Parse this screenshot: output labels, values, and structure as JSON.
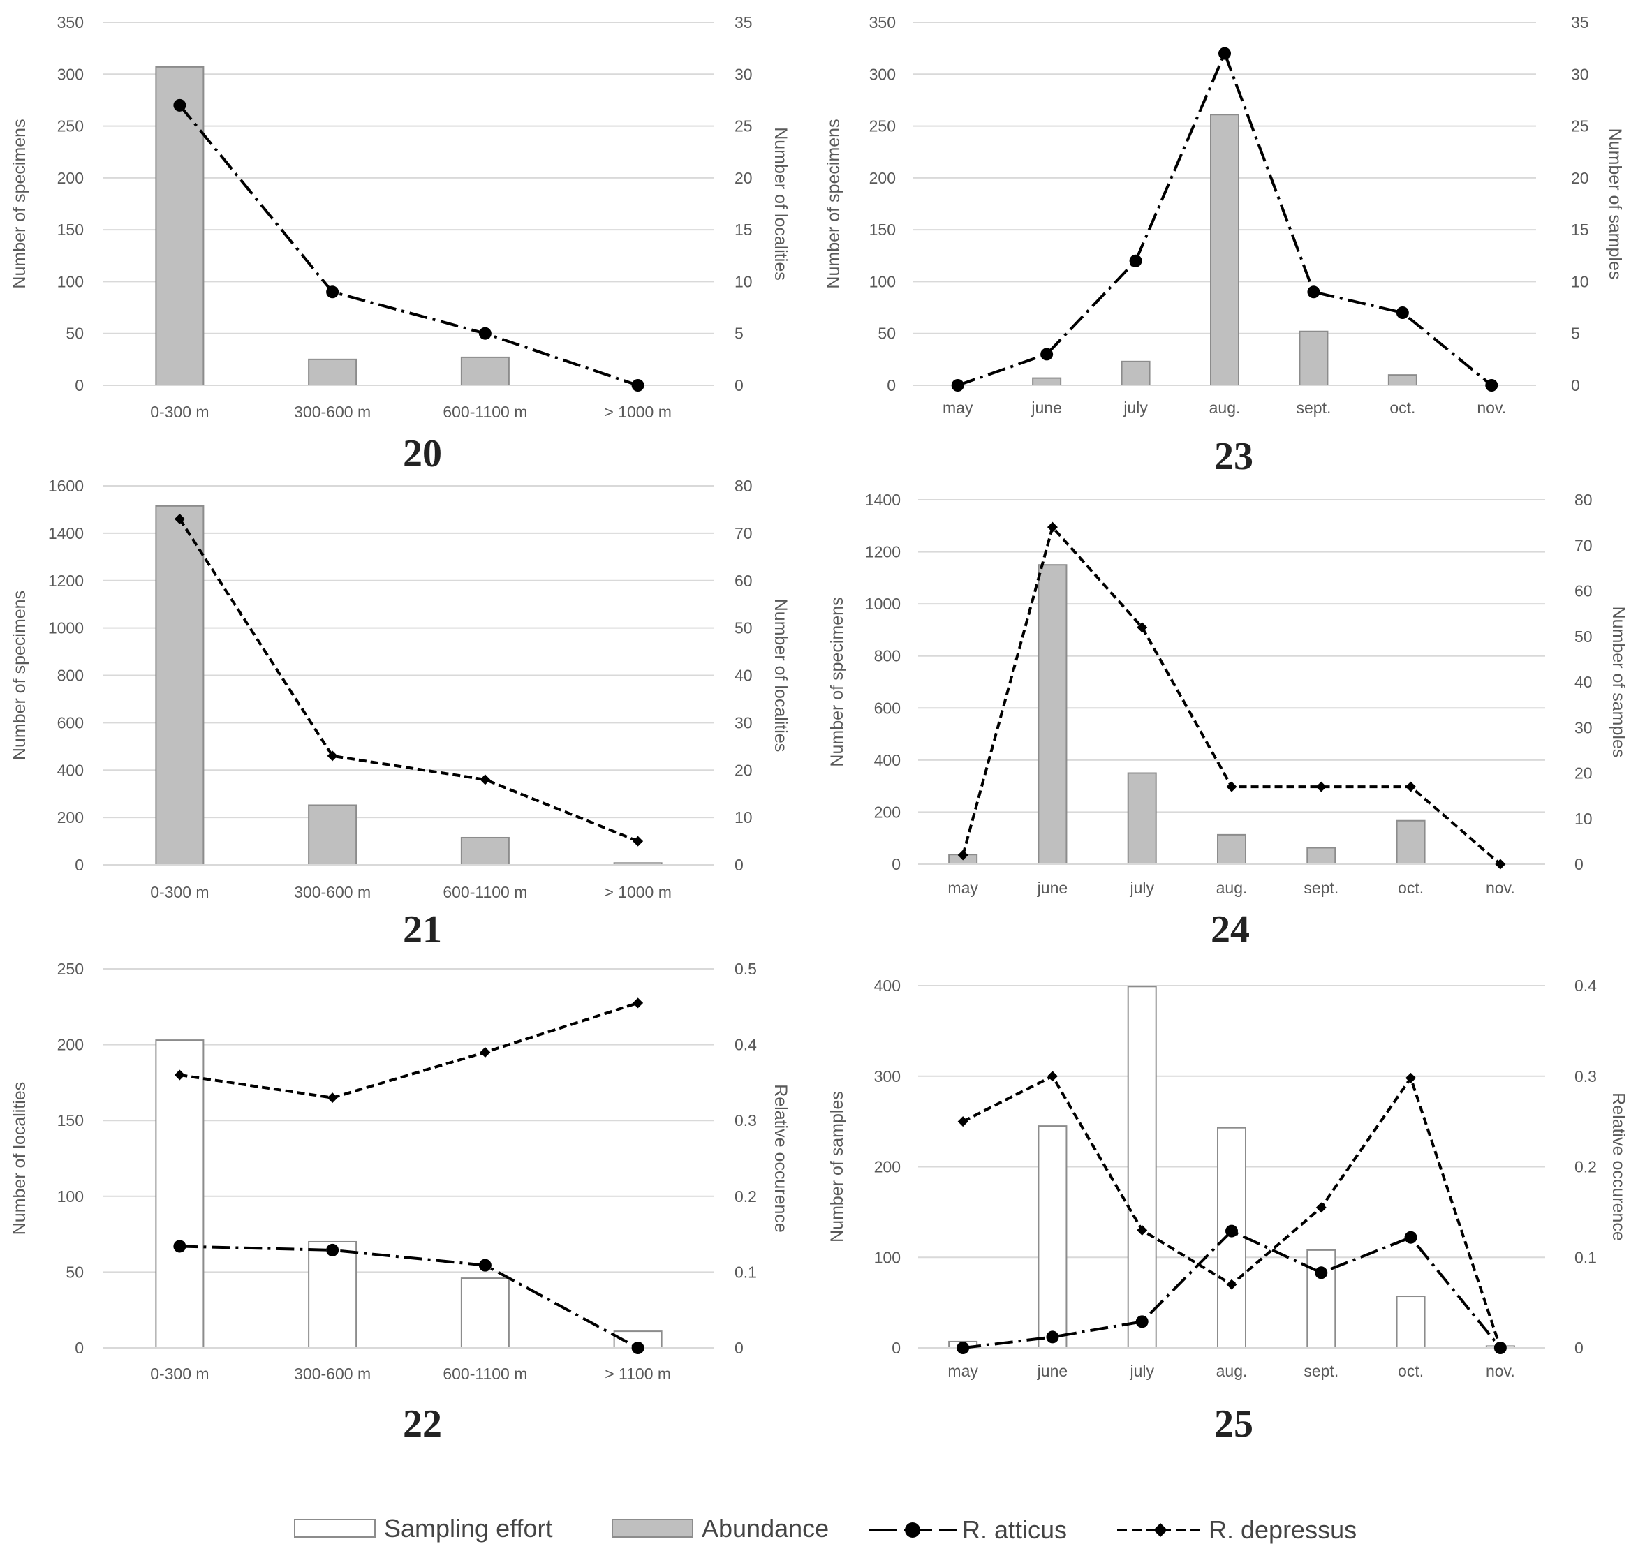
{
  "colors": {
    "abundance_fill": "#bfbfbf",
    "bar_stroke": "#8c8c8c",
    "effort_fill": "#ffffff",
    "grid": "#d9d9d9",
    "line": "#000000",
    "text": "#595959"
  },
  "legend": {
    "sampling_effort": "Sampling effort",
    "abundance": "Abundance",
    "r_atticus": "R. atticus",
    "r_depressus": "R. depressus"
  },
  "chart_data": [
    {
      "id": "20",
      "type": "bar",
      "panel_label": "20",
      "categories": [
        "0-300 m",
        "300-600 m",
        "600-1100 m",
        "> 1000 m"
      ],
      "ylabel": "Number of specimens",
      "y2label": "Number of localities",
      "ylim": [
        0,
        350
      ],
      "yticks": [
        0,
        50,
        100,
        150,
        200,
        250,
        300,
        350
      ],
      "y2lim": [
        0,
        35
      ],
      "y2ticks": [
        0,
        5,
        10,
        15,
        20,
        25,
        30,
        35
      ],
      "series": [
        {
          "name": "Abundance",
          "kind": "bar",
          "style": "abundance",
          "axis": "left",
          "values": [
            307,
            25,
            27,
            0
          ]
        },
        {
          "name": "R. atticus",
          "kind": "line",
          "style": "atticus",
          "axis": "right",
          "values": [
            27,
            9,
            5,
            0
          ]
        }
      ]
    },
    {
      "id": "21",
      "type": "bar",
      "panel_label": "21",
      "categories": [
        "0-300 m",
        "300-600 m",
        "600-1100 m",
        "> 1000 m"
      ],
      "ylabel": "Number of specimens",
      "y2label": "Number of localities",
      "ylim": [
        0,
        1600
      ],
      "yticks": [
        0,
        200,
        400,
        600,
        800,
        1000,
        1200,
        1400,
        1600
      ],
      "y2lim": [
        0,
        80
      ],
      "y2ticks": [
        0,
        10,
        20,
        30,
        40,
        50,
        60,
        70,
        80
      ],
      "series": [
        {
          "name": "Abundance",
          "kind": "bar",
          "style": "abundance",
          "axis": "left",
          "values": [
            1515,
            252,
            115,
            8
          ]
        },
        {
          "name": "R. depressus",
          "kind": "line",
          "style": "depressus",
          "axis": "right",
          "values": [
            73,
            23,
            18,
            5
          ]
        }
      ]
    },
    {
      "id": "22",
      "type": "bar",
      "panel_label": "22",
      "categories": [
        "0-300 m",
        "300-600 m",
        "600-1100 m",
        "> 1100 m"
      ],
      "ylabel": "Number of localities",
      "y2label": "Relative occurence",
      "ylim": [
        0,
        250
      ],
      "yticks": [
        0,
        50,
        100,
        150,
        200,
        250
      ],
      "y2lim": [
        0,
        0.5
      ],
      "y2ticks": [
        0,
        0.1,
        0.2,
        0.3,
        0.4,
        0.5
      ],
      "series": [
        {
          "name": "Sampling effort",
          "kind": "bar",
          "style": "effort",
          "axis": "left",
          "values": [
            203,
            70,
            46,
            11
          ]
        },
        {
          "name": "R. atticus",
          "kind": "line",
          "style": "atticus",
          "axis": "right",
          "values": [
            0.134,
            0.129,
            0.109,
            0
          ]
        },
        {
          "name": "R. depressus",
          "kind": "line",
          "style": "depressus",
          "axis": "right",
          "values": [
            0.36,
            0.33,
            0.39,
            0.455
          ]
        }
      ]
    },
    {
      "id": "23",
      "type": "bar",
      "panel_label": "23",
      "categories": [
        "may",
        "june",
        "july",
        "aug.",
        "sept.",
        "oct.",
        "nov."
      ],
      "ylabel": "Number of specimens",
      "y2label": "Number of samples",
      "ylim": [
        0,
        350
      ],
      "yticks": [
        0,
        50,
        100,
        150,
        200,
        250,
        300,
        350
      ],
      "y2lim": [
        0,
        35
      ],
      "y2ticks": [
        0,
        5,
        10,
        15,
        20,
        25,
        30,
        35
      ],
      "series": [
        {
          "name": "Abundance",
          "kind": "bar",
          "style": "abundance",
          "axis": "left",
          "values": [
            0,
            7,
            23,
            261,
            52,
            10,
            0
          ]
        },
        {
          "name": "R. atticus",
          "kind": "line",
          "style": "atticus",
          "axis": "right",
          "values": [
            0,
            3,
            12,
            32,
            9,
            7,
            0
          ]
        }
      ]
    },
    {
      "id": "24",
      "type": "bar",
      "panel_label": "24",
      "categories": [
        "may",
        "june",
        "july",
        "aug.",
        "sept.",
        "oct.",
        "nov."
      ],
      "ylabel": "Number of specimens",
      "y2label": "Number of samples",
      "ylim": [
        0,
        1400
      ],
      "yticks": [
        0,
        200,
        400,
        600,
        800,
        1000,
        1200,
        1400
      ],
      "y2lim": [
        0,
        80
      ],
      "y2ticks": [
        0,
        10,
        20,
        30,
        40,
        50,
        60,
        70,
        80
      ],
      "series": [
        {
          "name": "Abundance",
          "kind": "bar",
          "style": "abundance",
          "axis": "left",
          "values": [
            37,
            1150,
            350,
            113,
            63,
            167,
            0
          ]
        },
        {
          "name": "R. depressus",
          "kind": "line",
          "style": "depressus",
          "axis": "right",
          "values": [
            2,
            74,
            52,
            17,
            17,
            17,
            0
          ]
        }
      ]
    },
    {
      "id": "25",
      "type": "bar",
      "panel_label": "25",
      "categories": [
        "may",
        "june",
        "july",
        "aug.",
        "sept.",
        "oct.",
        "nov."
      ],
      "ylabel": "Number of samples",
      "y2label": "Relative occurence",
      "ylim": [
        0,
        400
      ],
      "yticks": [
        0,
        100,
        200,
        300,
        400
      ],
      "y2lim": [
        0,
        0.4
      ],
      "y2ticks": [
        0,
        0.1,
        0.2,
        0.3,
        0.4
      ],
      "series": [
        {
          "name": "Sampling effort",
          "kind": "bar",
          "style": "effort",
          "axis": "left",
          "values": [
            7,
            245,
            399,
            243,
            108,
            57,
            2
          ]
        },
        {
          "name": "R. atticus",
          "kind": "line",
          "style": "atticus",
          "axis": "right",
          "values": [
            0,
            0.012,
            0.029,
            0.129,
            0.083,
            0.122,
            0
          ]
        },
        {
          "name": "R. depressus",
          "kind": "line",
          "style": "depressus",
          "axis": "right",
          "values": [
            0.25,
            0.3,
            0.13,
            0.07,
            0.155,
            0.298,
            0
          ]
        }
      ]
    }
  ]
}
